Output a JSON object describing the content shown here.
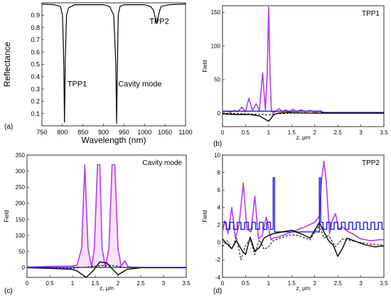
{
  "colors": {
    "purple": "#b43ce6",
    "purple_light": "#e6a8f3",
    "blue": "#1a1ae6",
    "black": "#000000"
  },
  "chart_data": [
    {
      "panel": "(a)",
      "type": "line",
      "title": "",
      "xlabel": "Wavelength (nm)",
      "ylabel": "Reflectance",
      "xlim": [
        750,
        1100
      ],
      "ylim": [
        0,
        1
      ],
      "xticks": [
        750,
        800,
        850,
        900,
        950,
        1000,
        1050,
        1100
      ],
      "yticks": [
        0.1,
        0.2,
        0.3,
        0.4,
        0.5,
        0.6,
        0.7,
        0.8,
        0.9
      ],
      "annotations": [
        {
          "text": "TPP1",
          "x": 812,
          "y": 0.32
        },
        {
          "text": "Cavity mode",
          "x": 936,
          "y": 0.32
        },
        {
          "text": "TPP2",
          "x": 1012,
          "y": 0.83
        }
      ],
      "series": [
        {
          "color": "#000000",
          "x": [
            750,
            780,
            795,
            800,
            803,
            805,
            807,
            810,
            815,
            830,
            900,
            915,
            925,
            930,
            932,
            934,
            936,
            940,
            950,
            1000,
            1015,
            1022,
            1026,
            1030,
            1034,
            1040,
            1060,
            1100
          ],
          "y": [
            0.99,
            0.985,
            0.97,
            0.9,
            0.55,
            0.03,
            0.55,
            0.9,
            0.96,
            0.985,
            0.985,
            0.97,
            0.9,
            0.5,
            0.02,
            0.5,
            0.9,
            0.97,
            0.985,
            0.985,
            0.97,
            0.94,
            0.88,
            0.83,
            0.9,
            0.97,
            0.985,
            0.99
          ]
        }
      ]
    },
    {
      "panel": "(b)",
      "type": "line",
      "title": "TPP1",
      "xlabel": "z, μm",
      "ylabel": "Field",
      "xlim": [
        0,
        3.5
      ],
      "ylim": [
        -20,
        160
      ],
      "xticks": [
        0,
        0.5,
        1,
        1.5,
        2,
        2.5,
        3,
        3.5
      ],
      "yticks": [
        0,
        50,
        100,
        150
      ],
      "series": [
        {
          "color": "#b43ce6",
          "width": 1.6,
          "x": [
            0,
            0.1,
            0.17,
            0.25,
            0.33,
            0.42,
            0.5,
            0.57,
            0.65,
            0.73,
            0.8,
            0.87,
            0.93,
            0.97,
            1.0,
            1.03,
            1.06,
            1.1,
            1.15,
            1.22,
            1.3,
            1.37,
            1.45,
            1.52,
            1.6,
            1.7,
            1.8,
            1.9,
            2.0,
            2.1,
            2.2,
            2.5,
            3.0,
            3.5
          ],
          "y": [
            2,
            3,
            1,
            4,
            2,
            9,
            2,
            22,
            4,
            14,
            4,
            60,
            5,
            60,
            158,
            60,
            3,
            1,
            2,
            7,
            2,
            5,
            1,
            6,
            2,
            5,
            2,
            4,
            1,
            3,
            1,
            1,
            1,
            1
          ]
        },
        {
          "color": "#1a1ae6",
          "width": 1.4,
          "x": [
            0,
            2.15,
            2.15,
            3.5
          ],
          "y": [
            3,
            3,
            1,
            1
          ]
        },
        {
          "color": "#000000",
          "width": 1.4,
          "x": [
            0,
            0.3,
            0.6,
            0.8,
            0.9,
            0.95,
            1.0,
            1.05,
            1.1,
            1.2,
            1.4,
            2.0,
            3.5
          ],
          "y": [
            -1,
            -2,
            -2,
            -4,
            -8,
            -10,
            -12,
            -8,
            -3,
            0,
            1,
            0,
            0
          ]
        },
        {
          "color": "#000000",
          "width": 1.0,
          "dash": "3,2",
          "x": [
            0,
            0.5,
            0.9,
            1.0,
            1.1,
            1.5,
            3.5
          ],
          "y": [
            0,
            -1,
            -2,
            -3,
            -1,
            0,
            0
          ]
        }
      ]
    },
    {
      "panel": "(c)",
      "type": "line",
      "title": "Cavity mode",
      "xlabel": "z, μm",
      "ylabel": "Field",
      "xlim": [
        0,
        3.5
      ],
      "ylim": [
        -30,
        350
      ],
      "xticks": [
        0,
        0.5,
        1,
        1.5,
        2,
        2.5,
        3,
        3.5
      ],
      "yticks": [
        0,
        50,
        100,
        150,
        200,
        250,
        300,
        350
      ],
      "series": [
        {
          "color": "#b43ce6",
          "width": 1.6,
          "x": [
            0,
            0.5,
            1.0,
            1.1,
            1.2,
            1.27,
            1.34,
            1.42,
            1.48,
            1.55,
            1.6,
            1.65,
            1.72,
            1.8,
            1.87,
            1.93,
            2.0,
            2.07,
            2.15,
            2.22,
            2.3,
            2.5,
            3.5
          ],
          "y": [
            2,
            4,
            5,
            8,
            60,
            320,
            60,
            2,
            60,
            320,
            320,
            60,
            2,
            60,
            320,
            320,
            60,
            5,
            22,
            3,
            2,
            1,
            1
          ],
          "fill": "#e6a8f3"
        },
        {
          "color": "#000000",
          "width": 1.4,
          "x": [
            0,
            0.5,
            1.0,
            1.1,
            1.3,
            1.45,
            1.6,
            1.75,
            1.85,
            2.0,
            2.2,
            2.5,
            3.5
          ],
          "y": [
            0,
            -2,
            -5,
            -10,
            -30,
            -10,
            18,
            15,
            0,
            -22,
            -5,
            0,
            0
          ]
        },
        {
          "color": "#000000",
          "width": 1.0,
          "dash": "3,2",
          "x": [
            0,
            1.0,
            1.5,
            1.8,
            2.2,
            3.5
          ],
          "y": [
            0,
            -2,
            5,
            8,
            0,
            0
          ]
        },
        {
          "color": "#1a1ae6",
          "width": 1.2,
          "x": [
            0,
            3.5
          ],
          "y": [
            1,
            1
          ]
        }
      ]
    },
    {
      "panel": "(d)",
      "type": "line",
      "title": "TPP2",
      "xlabel": "z, μm",
      "ylabel": "Field",
      "xlim": [
        0,
        3.5
      ],
      "ylim": [
        -4,
        10
      ],
      "xticks": [
        0,
        0.5,
        1,
        1.5,
        2,
        2.5,
        3,
        3.5
      ],
      "yticks": [
        -4,
        -2,
        0,
        2,
        4,
        6,
        8,
        10
      ],
      "series": [
        {
          "color": "#b43ce6",
          "width": 1.6,
          "x": [
            0,
            0.05,
            0.12,
            0.2,
            0.28,
            0.36,
            0.45,
            0.53,
            0.62,
            0.7,
            0.78,
            0.86,
            0.95,
            1.05,
            1.1,
            1.2,
            1.4,
            1.6,
            1.8,
            2.0,
            2.1,
            2.15,
            2.2,
            2.25,
            2.32,
            2.38,
            2.45,
            2.52,
            2.6,
            2.7,
            2.85,
            3.0,
            3.2,
            3.4,
            3.5
          ],
          "y": [
            1.2,
            2.5,
            1.0,
            4.0,
            0.5,
            2.0,
            6.8,
            1.5,
            1.2,
            5.3,
            0.4,
            0.8,
            2.9,
            0.3,
            0.5,
            0.6,
            1.0,
            1.4,
            1.8,
            2.3,
            3.0,
            7.2,
            9.3,
            7.0,
            1.0,
            2.5,
            3.3,
            1.5,
            1.8,
            1.3,
            0.9,
            0.4,
            0.2,
            0.3,
            0.3
          ]
        },
        {
          "color": "#1a1ae6",
          "width": 1.4,
          "x": [
            0,
            0.08,
            0.08,
            0.16,
            0.16,
            0.24,
            0.24,
            0.32,
            0.32,
            0.4,
            0.4,
            0.48,
            0.48,
            0.56,
            0.56,
            0.64,
            0.64,
            0.72,
            0.72,
            0.8,
            0.8,
            0.88,
            0.88,
            0.96,
            0.96,
            1.04,
            1.04,
            1.1,
            1.1,
            1.13,
            1.13,
            2.1,
            2.1,
            2.13,
            2.13,
            2.18,
            2.18,
            2.26,
            2.26,
            2.34,
            2.34,
            2.42,
            2.42,
            2.5,
            2.5,
            2.58,
            2.58,
            2.66,
            2.66,
            2.74,
            2.74,
            2.82,
            2.82,
            2.9,
            2.9,
            2.98,
            2.98,
            3.06,
            3.06,
            3.14,
            3.14,
            3.22,
            3.22,
            3.3,
            3.3,
            3.38,
            3.38,
            3.46,
            3.46,
            3.5
          ],
          "y": [
            2.3,
            2.3,
            1.5,
            1.5,
            2.3,
            2.3,
            1.5,
            1.5,
            2.3,
            2.3,
            1.5,
            1.5,
            2.3,
            2.3,
            1.5,
            1.5,
            2.3,
            2.3,
            1.5,
            1.5,
            2.3,
            2.3,
            1.5,
            1.5,
            2.3,
            2.3,
            1.5,
            1.5,
            7.4,
            7.4,
            1.2,
            1.2,
            7.4,
            7.4,
            2.3,
            2.3,
            1.5,
            1.5,
            2.3,
            2.3,
            1.5,
            1.5,
            2.3,
            2.3,
            1.5,
            1.5,
            2.3,
            2.3,
            1.5,
            1.5,
            2.3,
            2.3,
            1.5,
            1.5,
            2.3,
            2.3,
            1.5,
            1.5,
            2.3,
            2.3,
            1.5,
            1.5,
            2.3,
            2.3,
            1.5,
            1.5,
            2.3,
            2.3,
            1.5,
            1.5
          ]
        },
        {
          "color": "#000000",
          "width": 1.4,
          "x": [
            0,
            0.1,
            0.2,
            0.3,
            0.42,
            0.5,
            0.6,
            0.7,
            0.8,
            0.9,
            1.0,
            1.1,
            1.3,
            1.5,
            1.7,
            1.9,
            2.1,
            2.2,
            2.3,
            2.4,
            2.5,
            2.6,
            2.7,
            2.9,
            3.1,
            3.3,
            3.5
          ],
          "y": [
            0.4,
            -0.2,
            -0.7,
            0.2,
            -0.9,
            -1.4,
            0.6,
            -1.0,
            -0.6,
            0.5,
            0.8,
            1.0,
            1.2,
            1.4,
            1.0,
            0.5,
            2.3,
            1.2,
            0.2,
            -0.3,
            -1.6,
            -0.7,
            0.5,
            0.1,
            -0.3,
            -0.5,
            -0.4
          ]
        },
        {
          "color": "#000000",
          "width": 1.0,
          "dash": "3,2",
          "x": [
            0,
            0.1,
            0.2,
            0.3,
            0.4,
            0.5,
            0.6,
            0.7,
            0.8,
            0.9,
            1.0,
            1.1,
            1.3,
            1.5,
            1.7,
            1.9,
            2.1,
            2.2,
            2.3,
            2.45,
            2.6,
            2.8,
            3.0,
            3.2,
            3.5
          ],
          "y": [
            -0.5,
            0.2,
            -0.8,
            0.6,
            -2.0,
            -0.3,
            0.4,
            -1.4,
            0.3,
            -0.8,
            -0.5,
            0.2,
            0.6,
            0.9,
            0.7,
            0.3,
            2.0,
            0.5,
            0.8,
            -0.5,
            0.4,
            0.2,
            0.0,
            -0.2,
            -0.3
          ]
        }
      ]
    }
  ]
}
